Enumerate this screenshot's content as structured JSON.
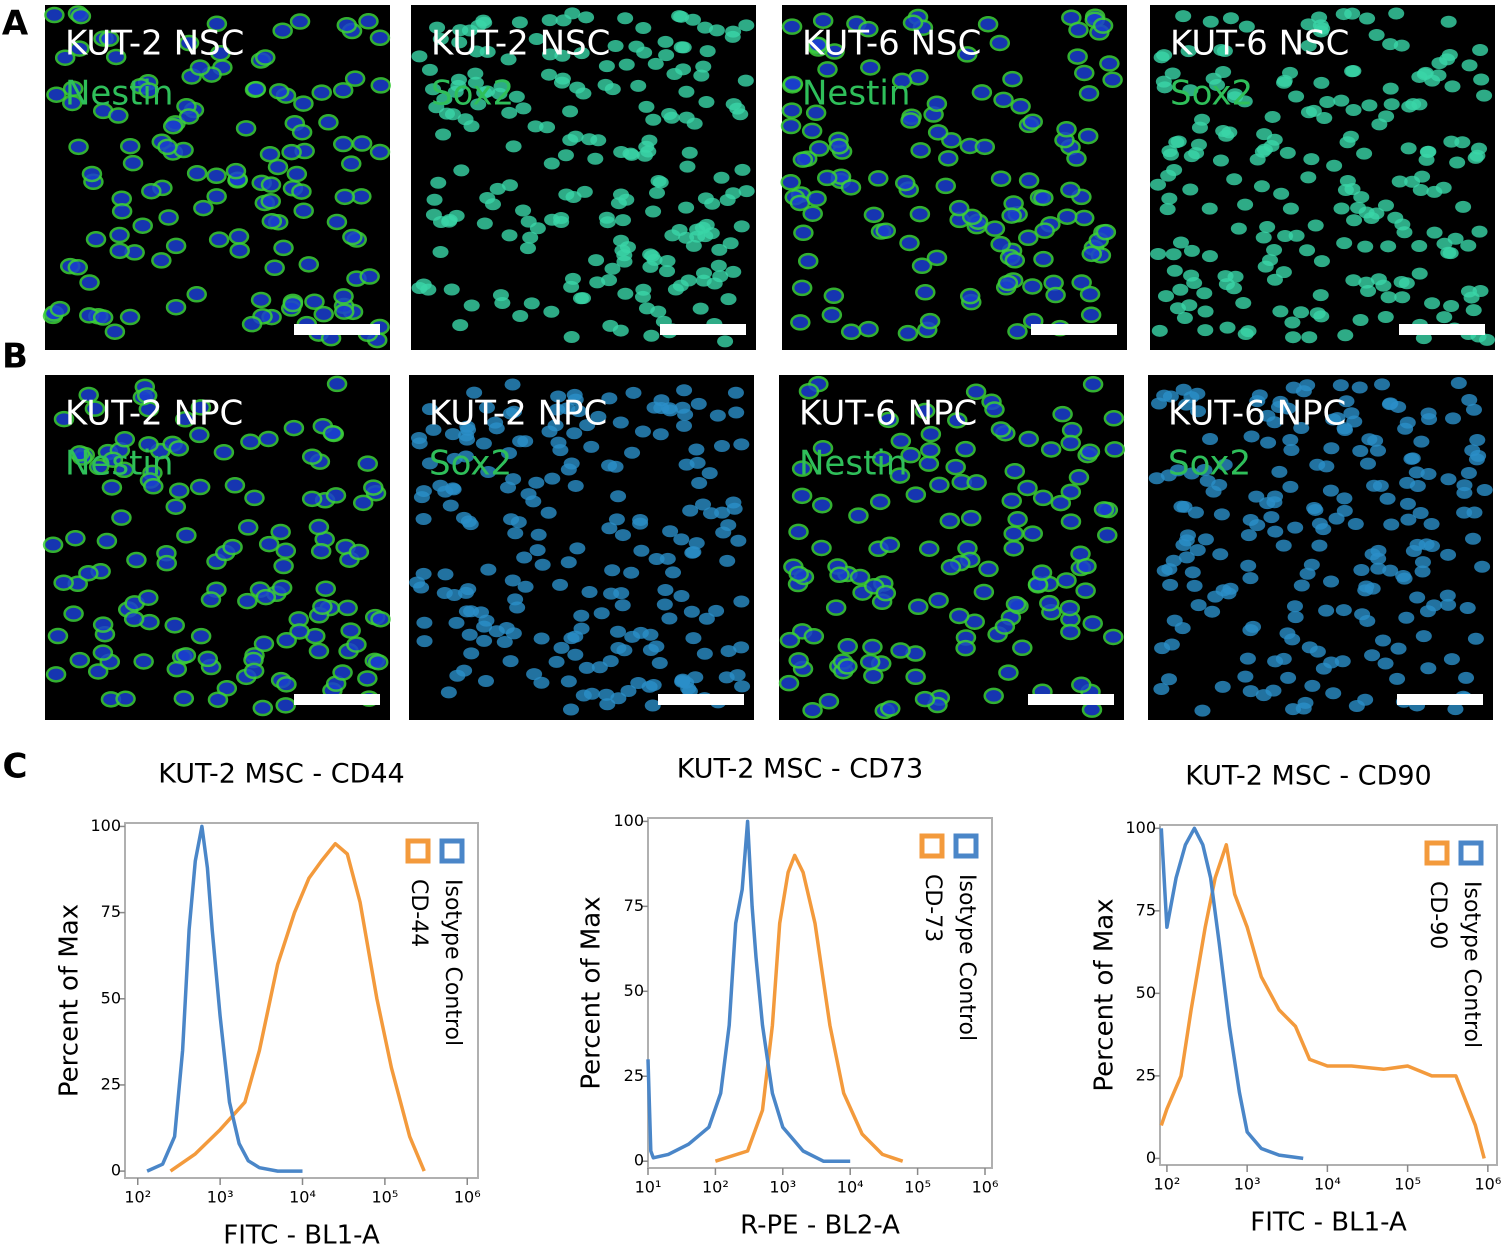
{
  "panels": [
    {
      "label": "A",
      "images": [
        {
          "line": "KUT-2 NSC",
          "marker": "Nestin"
        },
        {
          "line": "KUT-2 NSC",
          "marker": "Sox2"
        },
        {
          "line": "KUT-6 NSC",
          "marker": "Nestin"
        },
        {
          "line": "KUT-6 NSC",
          "marker": "Sox2"
        }
      ]
    },
    {
      "label": "B",
      "images": [
        {
          "line": "KUT-2 NPC",
          "marker": "Nestin"
        },
        {
          "line": "KUT-2 NPC",
          "marker": "Sox2"
        },
        {
          "line": "KUT-6 NPC",
          "marker": "Nestin"
        },
        {
          "line": "KUT-6 NPC",
          "marker": "Sox2"
        }
      ]
    },
    {
      "label": "C"
    }
  ],
  "chart_data": [
    {
      "type": "line",
      "title": "KUT-2 MSC - CD44",
      "x_label": "FITC - BL1-A",
      "y_label": "Percent of Max",
      "xscale": "log",
      "xlim": [
        70,
        1350000
      ],
      "ylim": [
        -2,
        101
      ],
      "xticks": [
        {
          "value": 100,
          "label": "10²"
        },
        {
          "value": 1000,
          "label": "10³"
        },
        {
          "value": 10000,
          "label": "10⁴"
        },
        {
          "value": 100000,
          "label": "10⁵"
        },
        {
          "value": 1000000,
          "label": "10⁶"
        }
      ],
      "yticks": [
        0,
        25,
        50,
        75,
        100
      ],
      "legend": "upper right",
      "series": [
        {
          "name": "CD-44",
          "color": "#f39a3c",
          "x": [
            250,
            500,
            1000,
            2000,
            3000,
            5000,
            8000,
            12000,
            17000,
            25000,
            35000,
            50000,
            80000,
            120000,
            200000,
            300000
          ],
          "values": [
            0,
            5,
            12,
            20,
            35,
            60,
            75,
            85,
            90,
            95,
            92,
            78,
            50,
            30,
            10,
            0
          ]
        },
        {
          "name": "Isotype Control",
          "color": "#4a86c8",
          "x": [
            130,
            200,
            280,
            350,
            420,
            500,
            600,
            700,
            800,
            1000,
            1300,
            1700,
            2200,
            3000,
            5000,
            10000
          ],
          "values": [
            0,
            2,
            10,
            35,
            70,
            90,
            100,
            88,
            70,
            45,
            20,
            8,
            3,
            1,
            0,
            0
          ]
        }
      ]
    },
    {
      "type": "line",
      "title": "KUT-2 MSC - CD73",
      "x_label": "R-PE - BL2-A",
      "y_label": "Percent of Max",
      "xscale": "log",
      "xlim": [
        10,
        1270000
      ],
      "ylim": [
        -2,
        101
      ],
      "xticks": [
        {
          "value": 10,
          "label": "10¹"
        },
        {
          "value": 100,
          "label": "10²"
        },
        {
          "value": 1000,
          "label": "10³"
        },
        {
          "value": 10000,
          "label": "10⁴"
        },
        {
          "value": 100000,
          "label": "10⁵"
        },
        {
          "value": 1000000,
          "label": "10⁶"
        }
      ],
      "yticks": [
        0,
        25,
        50,
        75,
        100
      ],
      "legend": "upper right",
      "series": [
        {
          "name": "CD-73",
          "color": "#f39a3c",
          "x": [
            100,
            300,
            500,
            700,
            900,
            1200,
            1500,
            2000,
            3000,
            5000,
            8000,
            15000,
            30000,
            60000
          ],
          "values": [
            0,
            3,
            15,
            40,
            70,
            85,
            90,
            85,
            70,
            40,
            20,
            8,
            2,
            0
          ]
        },
        {
          "name": "Isotype Control",
          "color": "#4a86c8",
          "x": [
            10,
            11,
            12,
            20,
            40,
            80,
            120,
            160,
            200,
            250,
            300,
            350,
            400,
            500,
            700,
            1000,
            2000,
            4000,
            10000
          ],
          "values": [
            30,
            3,
            1,
            2,
            5,
            10,
            20,
            40,
            70,
            80,
            100,
            75,
            60,
            40,
            20,
            10,
            3,
            0,
            0
          ]
        }
      ]
    },
    {
      "type": "line",
      "title": "KUT-2 MSC - CD90",
      "x_label": "FITC - BL1-A",
      "y_label": "Percent of Max",
      "xscale": "log",
      "xlim": [
        82,
        1300000
      ],
      "ylim": [
        -2,
        101
      ],
      "xticks": [
        {
          "value": 100,
          "label": "10²"
        },
        {
          "value": 1000,
          "label": "10³"
        },
        {
          "value": 10000,
          "label": "10⁴"
        },
        {
          "value": 100000,
          "label": "10⁵"
        },
        {
          "value": 1000000,
          "label": "10⁶"
        }
      ],
      "yticks": [
        0,
        25,
        50,
        75,
        100
      ],
      "legend": "upper right",
      "series": [
        {
          "name": "CD-90",
          "color": "#f39a3c",
          "x": [
            85,
            100,
            150,
            200,
            300,
            400,
            550,
            700,
            1000,
            1500,
            2500,
            4000,
            6000,
            10000,
            20000,
            50000,
            100000,
            200000,
            400000,
            700000,
            900000
          ],
          "values": [
            10,
            15,
            25,
            45,
            70,
            85,
            95,
            80,
            70,
            55,
            45,
            40,
            30,
            28,
            28,
            27,
            28,
            25,
            25,
            10,
            0
          ]
        },
        {
          "name": "Isotype Control",
          "color": "#4a86c8",
          "x": [
            85,
            100,
            130,
            170,
            220,
            280,
            350,
            450,
            600,
            800,
            1000,
            1500,
            2500,
            5000
          ],
          "values": [
            100,
            70,
            85,
            95,
            100,
            95,
            85,
            65,
            40,
            20,
            8,
            3,
            1,
            0
          ]
        }
      ]
    }
  ]
}
